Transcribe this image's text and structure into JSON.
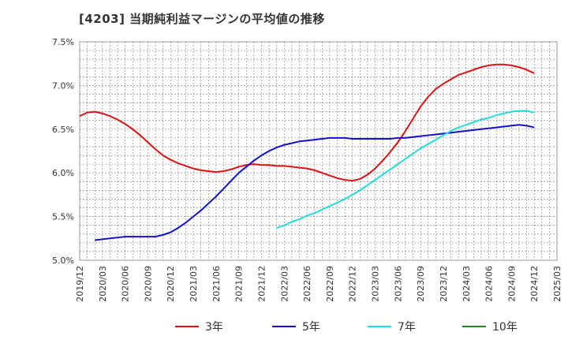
{
  "title": "[4203]  当期純利益マージンの平均値の推移",
  "chart_data": {
    "type": "line",
    "title": "[4203]  当期純利益マージンの平均値の推移",
    "ylim": [
      5.0,
      7.5
    ],
    "yticks": [
      5.0,
      5.5,
      6.0,
      6.5,
      7.0,
      7.5
    ],
    "ytick_labels": [
      "5.0%",
      "5.5%",
      "6.0%",
      "6.5%",
      "7.0%",
      "7.5%"
    ],
    "xlim": [
      "2019-12",
      "2025-03"
    ],
    "xtick_labels": [
      "2019/12",
      "2020/03",
      "2020/06",
      "2020/09",
      "2020/12",
      "2021/03",
      "2021/06",
      "2021/09",
      "2021/12",
      "2022/03",
      "2022/06",
      "2022/09",
      "2022/12",
      "2023/03",
      "2023/06",
      "2023/09",
      "2023/12",
      "2024/03",
      "2024/06",
      "2024/09",
      "2024/12",
      "2025/03"
    ],
    "grid": true,
    "legend": "bottom",
    "series": [
      {
        "name": "3年",
        "color": "#dd1111",
        "points": [
          [
            "2019-12",
            6.65
          ],
          [
            "2020-01",
            6.69
          ],
          [
            "2020-02",
            6.7
          ],
          [
            "2020-03",
            6.68
          ],
          [
            "2020-04",
            6.65
          ],
          [
            "2020-05",
            6.61
          ],
          [
            "2020-06",
            6.56
          ],
          [
            "2020-07",
            6.5
          ],
          [
            "2020-08",
            6.43
          ],
          [
            "2020-09",
            6.35
          ],
          [
            "2020-10",
            6.27
          ],
          [
            "2020-11",
            6.2
          ],
          [
            "2020-12",
            6.15
          ],
          [
            "2021-01",
            6.11
          ],
          [
            "2021-02",
            6.08
          ],
          [
            "2021-03",
            6.05
          ],
          [
            "2021-04",
            6.03
          ],
          [
            "2021-05",
            6.02
          ],
          [
            "2021-06",
            6.01
          ],
          [
            "2021-07",
            6.02
          ],
          [
            "2021-08",
            6.04
          ],
          [
            "2021-09",
            6.07
          ],
          [
            "2021-10",
            6.09
          ],
          [
            "2021-11",
            6.1
          ],
          [
            "2021-12",
            6.09
          ],
          [
            "2022-01",
            6.09
          ],
          [
            "2022-02",
            6.08
          ],
          [
            "2022-03",
            6.08
          ],
          [
            "2022-04",
            6.07
          ],
          [
            "2022-05",
            6.06
          ],
          [
            "2022-06",
            6.05
          ],
          [
            "2022-07",
            6.03
          ],
          [
            "2022-08",
            6.0
          ],
          [
            "2022-09",
            5.97
          ],
          [
            "2022-10",
            5.94
          ],
          [
            "2022-11",
            5.92
          ],
          [
            "2022-12",
            5.91
          ],
          [
            "2023-01",
            5.93
          ],
          [
            "2023-02",
            5.98
          ],
          [
            "2023-03",
            6.05
          ],
          [
            "2023-04",
            6.14
          ],
          [
            "2023-05",
            6.24
          ],
          [
            "2023-06",
            6.35
          ],
          [
            "2023-07",
            6.48
          ],
          [
            "2023-08",
            6.62
          ],
          [
            "2023-09",
            6.76
          ],
          [
            "2023-10",
            6.87
          ],
          [
            "2023-11",
            6.96
          ],
          [
            "2023-12",
            7.02
          ],
          [
            "2024-01",
            7.07
          ],
          [
            "2024-02",
            7.12
          ],
          [
            "2024-03",
            7.15
          ],
          [
            "2024-04",
            7.18
          ],
          [
            "2024-05",
            7.21
          ],
          [
            "2024-06",
            7.23
          ],
          [
            "2024-07",
            7.24
          ],
          [
            "2024-08",
            7.24
          ],
          [
            "2024-09",
            7.23
          ],
          [
            "2024-10",
            7.21
          ],
          [
            "2024-11",
            7.18
          ],
          [
            "2024-12",
            7.14
          ]
        ]
      },
      {
        "name": "5年",
        "color": "#1111cc",
        "points": [
          [
            "2020-02",
            5.23
          ],
          [
            "2020-03",
            5.24
          ],
          [
            "2020-04",
            5.25
          ],
          [
            "2020-05",
            5.26
          ],
          [
            "2020-06",
            5.27
          ],
          [
            "2020-07",
            5.27
          ],
          [
            "2020-08",
            5.27
          ],
          [
            "2020-09",
            5.27
          ],
          [
            "2020-10",
            5.27
          ],
          [
            "2020-11",
            5.29
          ],
          [
            "2020-12",
            5.32
          ],
          [
            "2021-01",
            5.37
          ],
          [
            "2021-02",
            5.43
          ],
          [
            "2021-03",
            5.5
          ],
          [
            "2021-04",
            5.57
          ],
          [
            "2021-05",
            5.65
          ],
          [
            "2021-06",
            5.73
          ],
          [
            "2021-07",
            5.82
          ],
          [
            "2021-08",
            5.91
          ],
          [
            "2021-09",
            6.0
          ],
          [
            "2021-10",
            6.07
          ],
          [
            "2021-11",
            6.14
          ],
          [
            "2021-12",
            6.2
          ],
          [
            "2022-01",
            6.25
          ],
          [
            "2022-02",
            6.29
          ],
          [
            "2022-03",
            6.32
          ],
          [
            "2022-04",
            6.34
          ],
          [
            "2022-05",
            6.36
          ],
          [
            "2022-06",
            6.37
          ],
          [
            "2022-07",
            6.38
          ],
          [
            "2022-08",
            6.39
          ],
          [
            "2022-09",
            6.4
          ],
          [
            "2022-10",
            6.4
          ],
          [
            "2022-11",
            6.4
          ],
          [
            "2022-12",
            6.39
          ],
          [
            "2023-01",
            6.39
          ],
          [
            "2023-02",
            6.39
          ],
          [
            "2023-03",
            6.39
          ],
          [
            "2023-04",
            6.39
          ],
          [
            "2023-05",
            6.39
          ],
          [
            "2023-06",
            6.4
          ],
          [
            "2023-07",
            6.4
          ],
          [
            "2023-08",
            6.41
          ],
          [
            "2023-09",
            6.42
          ],
          [
            "2023-10",
            6.43
          ],
          [
            "2023-11",
            6.44
          ],
          [
            "2023-12",
            6.45
          ],
          [
            "2024-01",
            6.46
          ],
          [
            "2024-02",
            6.47
          ],
          [
            "2024-03",
            6.48
          ],
          [
            "2024-04",
            6.49
          ],
          [
            "2024-05",
            6.5
          ],
          [
            "2024-06",
            6.51
          ],
          [
            "2024-07",
            6.52
          ],
          [
            "2024-08",
            6.53
          ],
          [
            "2024-09",
            6.54
          ],
          [
            "2024-10",
            6.55
          ],
          [
            "2024-11",
            6.54
          ],
          [
            "2024-12",
            6.52
          ]
        ]
      },
      {
        "name": "7年",
        "color": "#22dddd",
        "points": [
          [
            "2022-02",
            5.37
          ],
          [
            "2022-03",
            5.4
          ],
          [
            "2022-04",
            5.44
          ],
          [
            "2022-05",
            5.47
          ],
          [
            "2022-06",
            5.51
          ],
          [
            "2022-07",
            5.54
          ],
          [
            "2022-08",
            5.58
          ],
          [
            "2022-09",
            5.62
          ],
          [
            "2022-10",
            5.66
          ],
          [
            "2022-11",
            5.7
          ],
          [
            "2022-12",
            5.75
          ],
          [
            "2023-01",
            5.8
          ],
          [
            "2023-02",
            5.86
          ],
          [
            "2023-03",
            5.92
          ],
          [
            "2023-04",
            5.98
          ],
          [
            "2023-05",
            6.04
          ],
          [
            "2023-06",
            6.1
          ],
          [
            "2023-07",
            6.16
          ],
          [
            "2023-08",
            6.22
          ],
          [
            "2023-09",
            6.28
          ],
          [
            "2023-10",
            6.33
          ],
          [
            "2023-11",
            6.38
          ],
          [
            "2023-12",
            6.43
          ],
          [
            "2024-01",
            6.48
          ],
          [
            "2024-02",
            6.52
          ],
          [
            "2024-03",
            6.55
          ],
          [
            "2024-04",
            6.58
          ],
          [
            "2024-05",
            6.61
          ],
          [
            "2024-06",
            6.63
          ],
          [
            "2024-07",
            6.66
          ],
          [
            "2024-08",
            6.68
          ],
          [
            "2024-09",
            6.7
          ],
          [
            "2024-10",
            6.71
          ],
          [
            "2024-11",
            6.71
          ],
          [
            "2024-12",
            6.69
          ]
        ]
      },
      {
        "name": "10年",
        "color": "#228822",
        "points": []
      }
    ]
  }
}
